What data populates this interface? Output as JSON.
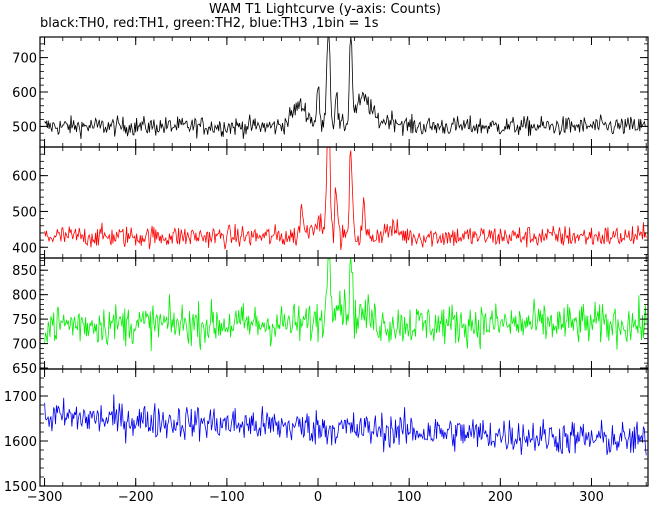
{
  "chart_data": {
    "type": "line",
    "title": "WAM T1 Lightcurve (y-axis: Counts)",
    "subtitle": "black:TH0, red:TH1, green:TH2, blue:TH3 ,1bin = 1s",
    "xlim": [
      -305,
      362
    ],
    "x_ticks": [
      -300,
      -200,
      -100,
      0,
      100,
      200,
      300
    ],
    "grid": false,
    "panels": [
      {
        "name": "TH0",
        "color": "#000000",
        "ylim": [
          440,
          760
        ],
        "y_ticks": [
          500,
          600,
          700
        ],
        "baseline": 500,
        "noise": 20,
        "features": [
          {
            "x": -20,
            "value": 560
          },
          {
            "x": 0,
            "value": 610
          },
          {
            "x": 10,
            "value": 640
          },
          {
            "x": 12,
            "value": 760
          },
          {
            "x": 20,
            "value": 600
          },
          {
            "x": 36,
            "value": 760
          },
          {
            "x": 50,
            "value": 580
          },
          {
            "x": 80,
            "value": 520
          }
        ]
      },
      {
        "name": "TH1",
        "color": "#ff0000",
        "ylim": [
          370,
          680
        ],
        "y_ticks": [
          400,
          500,
          600
        ],
        "baseline": 430,
        "noise": 22,
        "features": [
          {
            "x": -20,
            "value": 430
          },
          {
            "x": -18,
            "value": 520
          },
          {
            "x": 0,
            "value": 470
          },
          {
            "x": 10,
            "value": 580
          },
          {
            "x": 12,
            "value": 680
          },
          {
            "x": 20,
            "value": 560
          },
          {
            "x": 36,
            "value": 680
          },
          {
            "x": 50,
            "value": 520
          },
          {
            "x": 80,
            "value": 450
          }
        ]
      },
      {
        "name": "TH2",
        "color": "#00ee00",
        "ylim": [
          648,
          875
        ],
        "y_ticks": [
          650,
          700,
          750,
          800,
          850
        ],
        "baseline": 740,
        "noise": 30,
        "features": [
          {
            "x": 0,
            "value": 745
          },
          {
            "x": 12,
            "value": 875
          },
          {
            "x": 20,
            "value": 790
          },
          {
            "x": 36,
            "value": 875
          },
          {
            "x": 50,
            "value": 760
          }
        ]
      },
      {
        "name": "TH3",
        "color": "#0000ee",
        "ylim": [
          1500,
          1760
        ],
        "y_ticks": [
          1500,
          1600,
          1700
        ],
        "baseline": 1635,
        "noise": 28,
        "features": [
          {
            "x": -300,
            "value": 1655
          },
          {
            "x": 0,
            "value": 1630
          },
          {
            "x": 360,
            "value": 1600
          }
        ]
      }
    ]
  }
}
